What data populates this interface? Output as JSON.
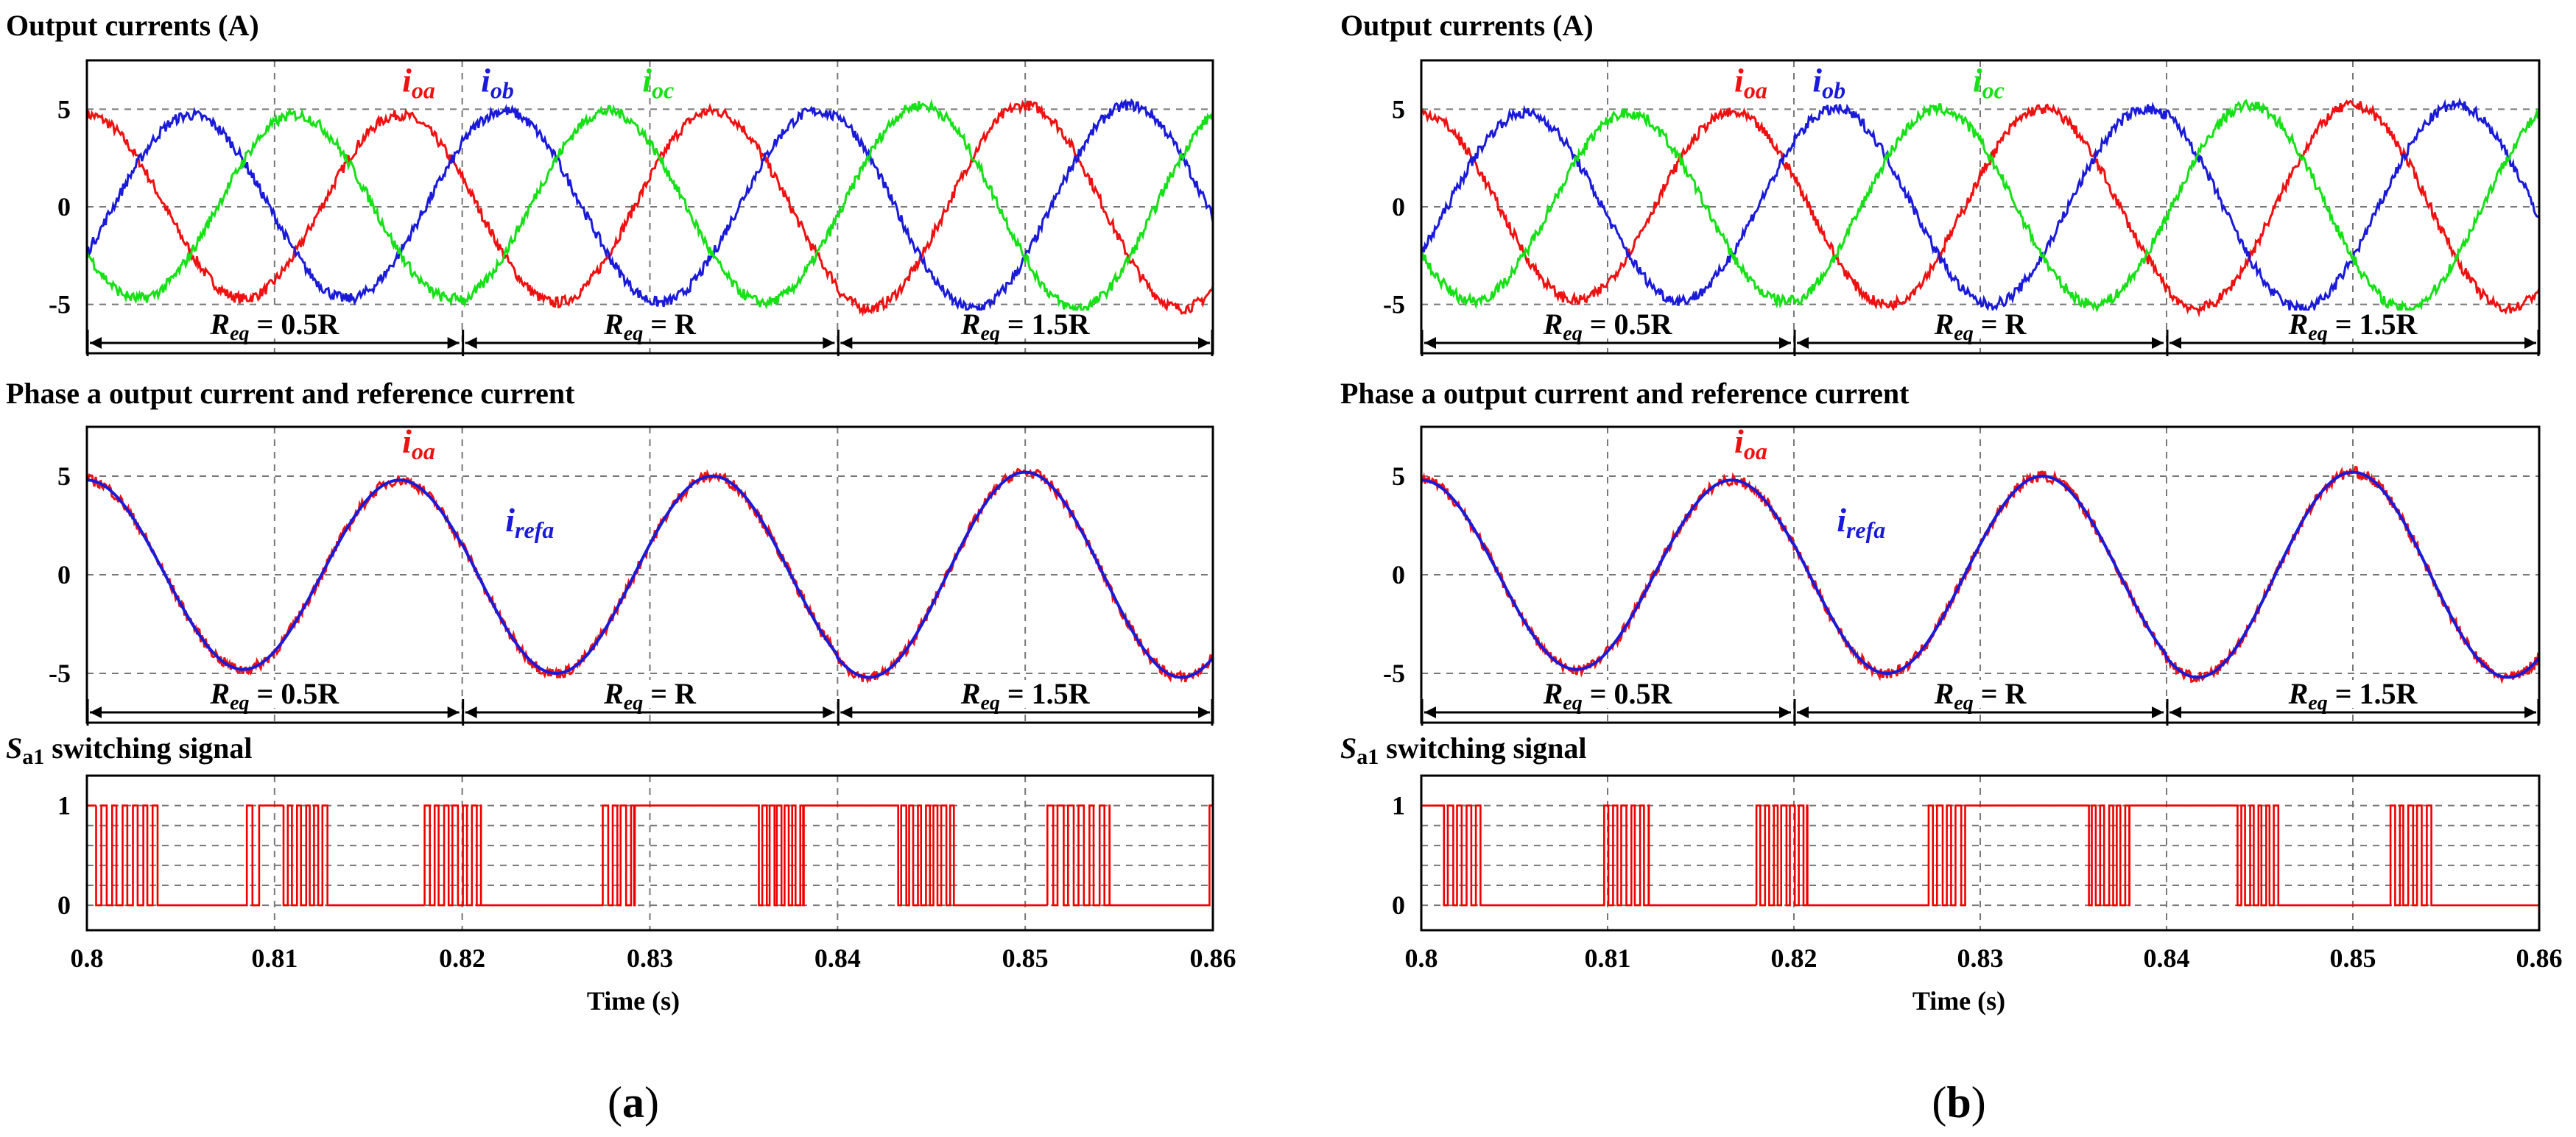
{
  "colors": {
    "ia": "#ee1111",
    "ib": "#1a1ad8",
    "ic": "#16e016",
    "switch": "#ee0000"
  },
  "x_axis": {
    "label": "Time (s)",
    "ticks": [
      "0.8",
      "0.81",
      "0.82",
      "0.83",
      "0.84",
      "0.85",
      "0.86"
    ]
  },
  "chart_data": [
    {
      "panel": "a",
      "caption_open": "(",
      "caption_letter": "a",
      "caption_close": ")",
      "subplots": [
        {
          "type": "line",
          "title": "Output currents (A)",
          "xlim": [
            0.8,
            0.86
          ],
          "ylim": [
            -7.5,
            7.5
          ],
          "yticks": [
            "5",
            "0",
            "-5"
          ],
          "series": [
            {
              "name": "ioa",
              "label": "i",
              "sub": "oa",
              "amplitude": [
                4.7,
                4.9,
                5.2
              ],
              "phase_deg": 90
            },
            {
              "name": "iob",
              "label": "i",
              "sub": "ob",
              "amplitude": [
                4.7,
                4.9,
                5.2
              ],
              "phase_deg": -30
            },
            {
              "name": "ioc",
              "label": "i",
              "sub": "oc",
              "amplitude": [
                4.7,
                4.9,
                5.2
              ],
              "phase_deg": 210
            }
          ],
          "frequency_hz": 60,
          "regions": [
            {
              "t0": 0.8,
              "t1": 0.82,
              "label": "R",
              "sub": "eq",
              "value": " = 0.5R"
            },
            {
              "t0": 0.82,
              "t1": 0.84,
              "label": "R",
              "sub": "eq",
              "value": " = R"
            },
            {
              "t0": 0.84,
              "t1": 0.86,
              "label": "R",
              "sub": "eq",
              "value": " = 1.5R"
            }
          ]
        },
        {
          "type": "line",
          "title": "Phase a output current and reference current",
          "xlim": [
            0.8,
            0.86
          ],
          "ylim": [
            -7.5,
            7.5
          ],
          "yticks": [
            "5",
            "0",
            "-5"
          ],
          "series": [
            {
              "name": "ioa",
              "label": "i",
              "sub": "oa",
              "amplitude": [
                4.8,
                5.0,
                5.2
              ],
              "phase_deg": 90
            },
            {
              "name": "irefa",
              "label": "i",
              "sub": "refa",
              "amplitude": [
                4.8,
                5.0,
                5.2
              ],
              "phase_deg": 90
            }
          ],
          "frequency_hz": 60,
          "regions": [
            {
              "t0": 0.8,
              "t1": 0.82,
              "label": "R",
              "sub": "eq",
              "value": " = 0.5R"
            },
            {
              "t0": 0.82,
              "t1": 0.84,
              "label": "R",
              "sub": "eq",
              "value": " = R"
            },
            {
              "t0": 0.84,
              "t1": 0.86,
              "label": "R",
              "sub": "eq",
              "value": " = 1.5R"
            }
          ]
        },
        {
          "type": "step",
          "title_prefix": "S",
          "title_sub": "a1",
          "title_suffix": " switching signal",
          "xlim": [
            0.8,
            0.86
          ],
          "ylim": [
            -0.25,
            1.3
          ],
          "yticks": [
            "1",
            "0"
          ],
          "bursts": [
            [
              0.8005,
              0.8038,
              0.0,
              12
            ],
            [
              0.8085,
              0.8092,
              1.0,
              2
            ],
            [
              0.8105,
              0.8128,
              0.0,
              10
            ],
            [
              0.818,
              0.821,
              0.0,
              12
            ],
            [
              0.8275,
              0.8292,
              1.0,
              7
            ],
            [
              0.8358,
              0.8382,
              1.0,
              12
            ],
            [
              0.8432,
              0.8462,
              0.0,
              14
            ],
            [
              0.8512,
              0.8545,
              0.0,
              12
            ],
            [
              0.8598,
              0.86,
              0.0,
              1
            ]
          ]
        }
      ]
    },
    {
      "panel": "b",
      "caption_open": "(",
      "caption_letter": "b",
      "caption_close": ")",
      "subplots": [
        {
          "type": "line",
          "title": "Output currents (A)",
          "xlim": [
            0.8,
            0.86
          ],
          "ylim": [
            -7.5,
            7.5
          ],
          "yticks": [
            "5",
            "0",
            "-5"
          ],
          "series": [
            {
              "name": "ioa",
              "label": "i",
              "sub": "oa",
              "amplitude": [
                4.8,
                5.0,
                5.2
              ],
              "phase_deg": 90
            },
            {
              "name": "iob",
              "label": "i",
              "sub": "ob",
              "amplitude": [
                4.8,
                5.0,
                5.2
              ],
              "phase_deg": -30
            },
            {
              "name": "ioc",
              "label": "i",
              "sub": "oc",
              "amplitude": [
                4.8,
                5.0,
                5.2
              ],
              "phase_deg": 210
            }
          ],
          "frequency_hz": 60,
          "regions": [
            {
              "t0": 0.8,
              "t1": 0.82,
              "label": "R",
              "sub": "eq",
              "value": " = 0.5R"
            },
            {
              "t0": 0.82,
              "t1": 0.84,
              "label": "R",
              "sub": "eq",
              "value": " = R"
            },
            {
              "t0": 0.84,
              "t1": 0.86,
              "label": "R",
              "sub": "eq",
              "value": " = 1.5R"
            }
          ]
        },
        {
          "type": "line",
          "title": "Phase a output current and reference current",
          "xlim": [
            0.8,
            0.86
          ],
          "ylim": [
            -7.5,
            7.5
          ],
          "yticks": [
            "5",
            "0",
            "-5"
          ],
          "series": [
            {
              "name": "ioa",
              "label": "i",
              "sub": "oa",
              "amplitude": [
                4.8,
                5.0,
                5.2
              ],
              "phase_deg": 90
            },
            {
              "name": "irefa",
              "label": "i",
              "sub": "refa",
              "amplitude": [
                4.8,
                5.0,
                5.2
              ],
              "phase_deg": 90
            }
          ],
          "frequency_hz": 60,
          "regions": [
            {
              "t0": 0.8,
              "t1": 0.82,
              "label": "R",
              "sub": "eq",
              "value": " = 0.5R"
            },
            {
              "t0": 0.82,
              "t1": 0.84,
              "label": "R",
              "sub": "eq",
              "value": " = R"
            },
            {
              "t0": 0.84,
              "t1": 0.86,
              "label": "R",
              "sub": "eq",
              "value": " = 1.5R"
            }
          ]
        },
        {
          "type": "step",
          "title_prefix": "S",
          "title_sub": "a1",
          "title_suffix": " switching signal",
          "xlim": [
            0.8,
            0.86
          ],
          "ylim": [
            -0.25,
            1.3
          ],
          "yticks": [
            "1",
            "0"
          ],
          "bursts": [
            [
              0.8012,
              0.8032,
              0.0,
              8
            ],
            [
              0.8098,
              0.8122,
              0.0,
              10
            ],
            [
              0.818,
              0.8207,
              0.0,
              12
            ],
            [
              0.8272,
              0.8292,
              1.0,
              8
            ],
            [
              0.8358,
              0.838,
              1.0,
              10
            ],
            [
              0.8438,
              0.846,
              0.0,
              10
            ],
            [
              0.852,
              0.8542,
              0.0,
              9
            ]
          ]
        }
      ]
    }
  ]
}
